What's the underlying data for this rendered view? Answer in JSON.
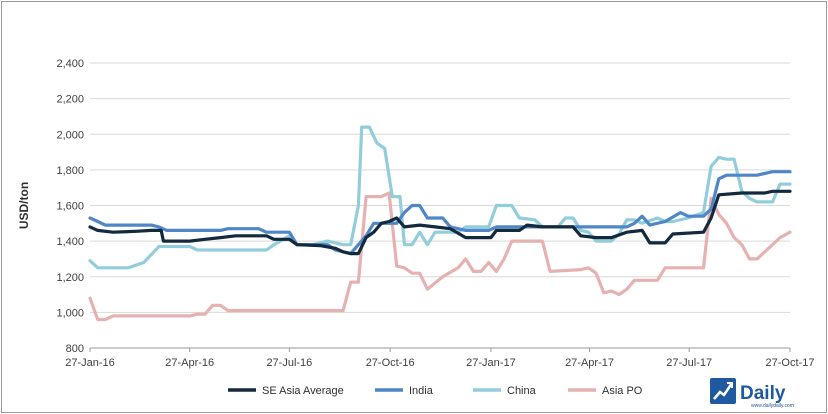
{
  "chart_data": {
    "type": "line",
    "ylabel": "USD/ton",
    "xlabel": "",
    "ylim": [
      800,
      2400
    ],
    "yticks": [
      "800",
      "1,000",
      "1,200",
      "1,400",
      "1,600",
      "1,800",
      "2,000",
      "2,200",
      "2,400"
    ],
    "ytick_values": [
      800,
      1000,
      1200,
      1400,
      1600,
      1800,
      2000,
      2200,
      2400
    ],
    "x_start": "2016-01-27",
    "x_end": "2017-10-27",
    "xticks": [
      "27-Jan-16",
      "27-Apr-16",
      "27-Jul-16",
      "27-Oct-16",
      "27-Jan-17",
      "27-Apr-17",
      "27-Jul-17",
      "27-Oct-17"
    ],
    "xtick_dates": [
      "2016-01-27",
      "2016-04-27",
      "2016-07-27",
      "2016-10-27",
      "2017-01-27",
      "2017-04-27",
      "2017-07-27",
      "2017-10-27"
    ],
    "grid": "horizontal",
    "legend_position": "bottom",
    "series": [
      {
        "name": "SE Asia Average",
        "color": "#13293d",
        "points": [
          [
            "2016-01-27",
            1480
          ],
          [
            "2016-02-03",
            1460
          ],
          [
            "2016-02-17",
            1450
          ],
          [
            "2016-03-09",
            1455
          ],
          [
            "2016-03-23",
            1460
          ],
          [
            "2016-04-01",
            1460
          ],
          [
            "2016-04-03",
            1400
          ],
          [
            "2016-04-27",
            1400
          ],
          [
            "2016-05-11",
            1410
          ],
          [
            "2016-05-25",
            1420
          ],
          [
            "2016-06-08",
            1430
          ],
          [
            "2016-07-06",
            1430
          ],
          [
            "2016-07-13",
            1410
          ],
          [
            "2016-07-27",
            1410
          ],
          [
            "2016-08-03",
            1380
          ],
          [
            "2016-08-24",
            1375
          ],
          [
            "2016-09-07",
            1360
          ],
          [
            "2016-09-14",
            1340
          ],
          [
            "2016-09-21",
            1330
          ],
          [
            "2016-09-28",
            1330
          ],
          [
            "2016-10-05",
            1420
          ],
          [
            "2016-10-12",
            1450
          ],
          [
            "2016-10-19",
            1500
          ],
          [
            "2016-10-26",
            1510
          ],
          [
            "2016-11-02",
            1530
          ],
          [
            "2016-11-09",
            1480
          ],
          [
            "2016-11-23",
            1490
          ],
          [
            "2016-12-07",
            1480
          ],
          [
            "2016-12-21",
            1470
          ],
          [
            "2017-01-04",
            1420
          ],
          [
            "2017-01-27",
            1420
          ],
          [
            "2017-02-01",
            1460
          ],
          [
            "2017-02-22",
            1460
          ],
          [
            "2017-03-01",
            1490
          ],
          [
            "2017-03-15",
            1480
          ],
          [
            "2017-04-12",
            1480
          ],
          [
            "2017-04-19",
            1430
          ],
          [
            "2017-05-03",
            1420
          ],
          [
            "2017-05-17",
            1420
          ],
          [
            "2017-05-31",
            1450
          ],
          [
            "2017-06-14",
            1460
          ],
          [
            "2017-06-21",
            1390
          ],
          [
            "2017-07-05",
            1390
          ],
          [
            "2017-07-12",
            1440
          ],
          [
            "2017-08-09",
            1450
          ],
          [
            "2017-08-16",
            1530
          ],
          [
            "2017-08-23",
            1660
          ],
          [
            "2017-09-13",
            1670
          ],
          [
            "2017-10-04",
            1670
          ],
          [
            "2017-10-11",
            1680
          ],
          [
            "2017-10-27",
            1680
          ]
        ]
      },
      {
        "name": "India",
        "color": "#4f86c6",
        "points": [
          [
            "2016-01-27",
            1530
          ],
          [
            "2016-02-03",
            1510
          ],
          [
            "2016-02-10",
            1490
          ],
          [
            "2016-03-23",
            1490
          ],
          [
            "2016-03-30",
            1480
          ],
          [
            "2016-04-06",
            1460
          ],
          [
            "2016-05-25",
            1460
          ],
          [
            "2016-06-01",
            1470
          ],
          [
            "2016-06-29",
            1470
          ],
          [
            "2016-07-06",
            1450
          ],
          [
            "2016-07-27",
            1450
          ],
          [
            "2016-08-03",
            1380
          ],
          [
            "2016-08-31",
            1380
          ],
          [
            "2016-09-07",
            1350
          ],
          [
            "2016-09-21",
            1330
          ],
          [
            "2016-10-05",
            1430
          ],
          [
            "2016-10-12",
            1500
          ],
          [
            "2016-10-26",
            1500
          ],
          [
            "2016-11-02",
            1500
          ],
          [
            "2016-11-09",
            1560
          ],
          [
            "2016-11-16",
            1600
          ],
          [
            "2016-11-23",
            1600
          ],
          [
            "2016-11-30",
            1530
          ],
          [
            "2016-12-14",
            1530
          ],
          [
            "2016-12-21",
            1480
          ],
          [
            "2017-01-04",
            1460
          ],
          [
            "2017-01-25",
            1460
          ],
          [
            "2017-02-01",
            1480
          ],
          [
            "2017-04-26",
            1480
          ],
          [
            "2017-05-10",
            1480
          ],
          [
            "2017-05-31",
            1480
          ],
          [
            "2017-06-07",
            1500
          ],
          [
            "2017-06-14",
            1540
          ],
          [
            "2017-06-21",
            1490
          ],
          [
            "2017-07-05",
            1510
          ],
          [
            "2017-07-19",
            1560
          ],
          [
            "2017-07-26",
            1540
          ],
          [
            "2017-08-09",
            1540
          ],
          [
            "2017-08-16",
            1580
          ],
          [
            "2017-08-23",
            1750
          ],
          [
            "2017-08-30",
            1770
          ],
          [
            "2017-09-27",
            1770
          ],
          [
            "2017-10-04",
            1780
          ],
          [
            "2017-10-11",
            1790
          ],
          [
            "2017-10-27",
            1790
          ]
        ]
      },
      {
        "name": "China",
        "color": "#92cddc",
        "points": [
          [
            "2016-01-27",
            1290
          ],
          [
            "2016-02-03",
            1250
          ],
          [
            "2016-03-02",
            1250
          ],
          [
            "2016-03-16",
            1280
          ],
          [
            "2016-03-30",
            1370
          ],
          [
            "2016-04-13",
            1370
          ],
          [
            "2016-04-27",
            1370
          ],
          [
            "2016-05-04",
            1350
          ],
          [
            "2016-07-06",
            1350
          ],
          [
            "2016-07-13",
            1380
          ],
          [
            "2016-07-27",
            1430
          ],
          [
            "2016-08-03",
            1380
          ],
          [
            "2016-08-17",
            1380
          ],
          [
            "2016-08-24",
            1390
          ],
          [
            "2016-08-31",
            1400
          ],
          [
            "2016-09-07",
            1390
          ],
          [
            "2016-09-14",
            1380
          ],
          [
            "2016-09-21",
            1380
          ],
          [
            "2016-09-28",
            1600
          ],
          [
            "2016-10-01",
            2040
          ],
          [
            "2016-10-08",
            2040
          ],
          [
            "2016-10-15",
            1950
          ],
          [
            "2016-10-22",
            1920
          ],
          [
            "2016-10-29",
            1650
          ],
          [
            "2016-11-05",
            1650
          ],
          [
            "2016-11-09",
            1380
          ],
          [
            "2016-11-16",
            1380
          ],
          [
            "2016-11-23",
            1450
          ],
          [
            "2016-11-30",
            1380
          ],
          [
            "2016-12-07",
            1450
          ],
          [
            "2016-12-28",
            1450
          ],
          [
            "2017-01-04",
            1480
          ],
          [
            "2017-01-25",
            1480
          ],
          [
            "2017-02-01",
            1600
          ],
          [
            "2017-02-15",
            1600
          ],
          [
            "2017-02-22",
            1530
          ],
          [
            "2017-03-08",
            1520
          ],
          [
            "2017-03-15",
            1480
          ],
          [
            "2017-03-29",
            1480
          ],
          [
            "2017-04-05",
            1530
          ],
          [
            "2017-04-12",
            1530
          ],
          [
            "2017-04-19",
            1460
          ],
          [
            "2017-04-26",
            1450
          ],
          [
            "2017-05-03",
            1400
          ],
          [
            "2017-05-17",
            1400
          ],
          [
            "2017-05-24",
            1440
          ],
          [
            "2017-05-31",
            1520
          ],
          [
            "2017-06-07",
            1520
          ],
          [
            "2017-06-14",
            1500
          ],
          [
            "2017-06-28",
            1530
          ],
          [
            "2017-07-05",
            1510
          ],
          [
            "2017-07-12",
            1510
          ],
          [
            "2017-07-26",
            1530
          ],
          [
            "2017-08-09",
            1560
          ],
          [
            "2017-08-16",
            1820
          ],
          [
            "2017-08-23",
            1870
          ],
          [
            "2017-08-30",
            1860
          ],
          [
            "2017-09-06",
            1860
          ],
          [
            "2017-09-13",
            1680
          ],
          [
            "2017-09-20",
            1640
          ],
          [
            "2017-09-27",
            1620
          ],
          [
            "2017-10-11",
            1620
          ],
          [
            "2017-10-18",
            1720
          ],
          [
            "2017-10-27",
            1720
          ]
        ]
      },
      {
        "name": "Asia PO",
        "color": "#e6b1b1",
        "points": [
          [
            "2016-01-27",
            1080
          ],
          [
            "2016-02-03",
            960
          ],
          [
            "2016-02-10",
            960
          ],
          [
            "2016-02-17",
            980
          ],
          [
            "2016-03-23",
            980
          ],
          [
            "2016-04-27",
            980
          ],
          [
            "2016-05-04",
            990
          ],
          [
            "2016-05-11",
            990
          ],
          [
            "2016-05-18",
            1040
          ],
          [
            "2016-05-25",
            1040
          ],
          [
            "2016-06-01",
            1010
          ],
          [
            "2016-07-27",
            1010
          ],
          [
            "2016-09-07",
            1010
          ],
          [
            "2016-09-14",
            1010
          ],
          [
            "2016-09-21",
            1170
          ],
          [
            "2016-09-28",
            1170
          ],
          [
            "2016-10-05",
            1650
          ],
          [
            "2016-10-19",
            1650
          ],
          [
            "2016-10-26",
            1670
          ],
          [
            "2016-11-02",
            1260
          ],
          [
            "2016-11-09",
            1250
          ],
          [
            "2016-11-16",
            1220
          ],
          [
            "2016-11-23",
            1220
          ],
          [
            "2016-11-30",
            1130
          ],
          [
            "2016-12-14",
            1200
          ],
          [
            "2016-12-28",
            1250
          ],
          [
            "2017-01-04",
            1300
          ],
          [
            "2017-01-11",
            1230
          ],
          [
            "2017-01-18",
            1230
          ],
          [
            "2017-01-25",
            1280
          ],
          [
            "2017-02-01",
            1230
          ],
          [
            "2017-02-08",
            1300
          ],
          [
            "2017-02-15",
            1400
          ],
          [
            "2017-03-15",
            1400
          ],
          [
            "2017-03-22",
            1230
          ],
          [
            "2017-04-19",
            1240
          ],
          [
            "2017-04-26",
            1250
          ],
          [
            "2017-05-03",
            1220
          ],
          [
            "2017-05-10",
            1110
          ],
          [
            "2017-05-17",
            1120
          ],
          [
            "2017-05-24",
            1100
          ],
          [
            "2017-05-31",
            1130
          ],
          [
            "2017-06-07",
            1180
          ],
          [
            "2017-06-28",
            1180
          ],
          [
            "2017-07-05",
            1250
          ],
          [
            "2017-08-09",
            1250
          ],
          [
            "2017-08-16",
            1640
          ],
          [
            "2017-08-23",
            1550
          ],
          [
            "2017-08-30",
            1500
          ],
          [
            "2017-09-06",
            1420
          ],
          [
            "2017-09-13",
            1380
          ],
          [
            "2017-09-20",
            1300
          ],
          [
            "2017-09-27",
            1300
          ],
          [
            "2017-10-04",
            1340
          ],
          [
            "2017-10-18",
            1420
          ],
          [
            "2017-10-27",
            1450
          ]
        ]
      }
    ]
  },
  "logo": {
    "name": "Daily",
    "sub": "www.dailydaily.com"
  }
}
